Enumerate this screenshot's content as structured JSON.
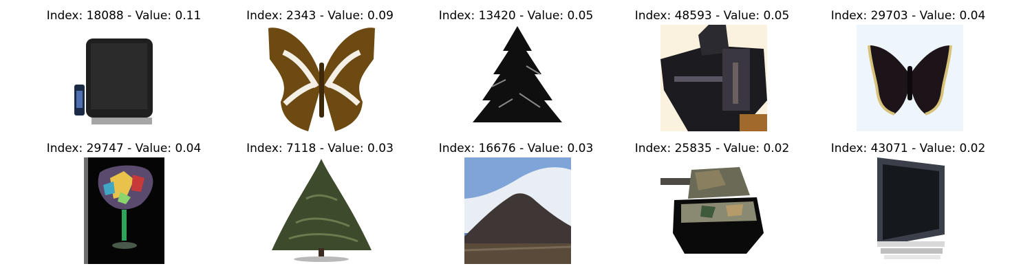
{
  "panels": [
    {
      "title": "Index: 18088 - Value: 0.11",
      "icon": "tv-with-remote-image"
    },
    {
      "title": "Index: 2343 - Value: 0.09",
      "icon": "butterfly-image"
    },
    {
      "title": "Index: 13420 - Value: 0.05",
      "icon": "pine-tree-image"
    },
    {
      "title": "Index: 48593 - Value: 0.05",
      "icon": "tank-image"
    },
    {
      "title": "Index: 29703 - Value: 0.04",
      "icon": "dark-butterfly-image"
    },
    {
      "title": "Index: 29747 - Value: 0.04",
      "icon": "glass-image"
    },
    {
      "title": "Index: 7118 - Value: 0.03",
      "icon": "tree-image"
    },
    {
      "title": "Index: 16676 - Value: 0.03",
      "icon": "mountain-image"
    },
    {
      "title": "Index: 25835 - Value: 0.02",
      "icon": "tank-image"
    },
    {
      "title": "Index: 43071 - Value: 0.02",
      "icon": "tv-image"
    }
  ]
}
